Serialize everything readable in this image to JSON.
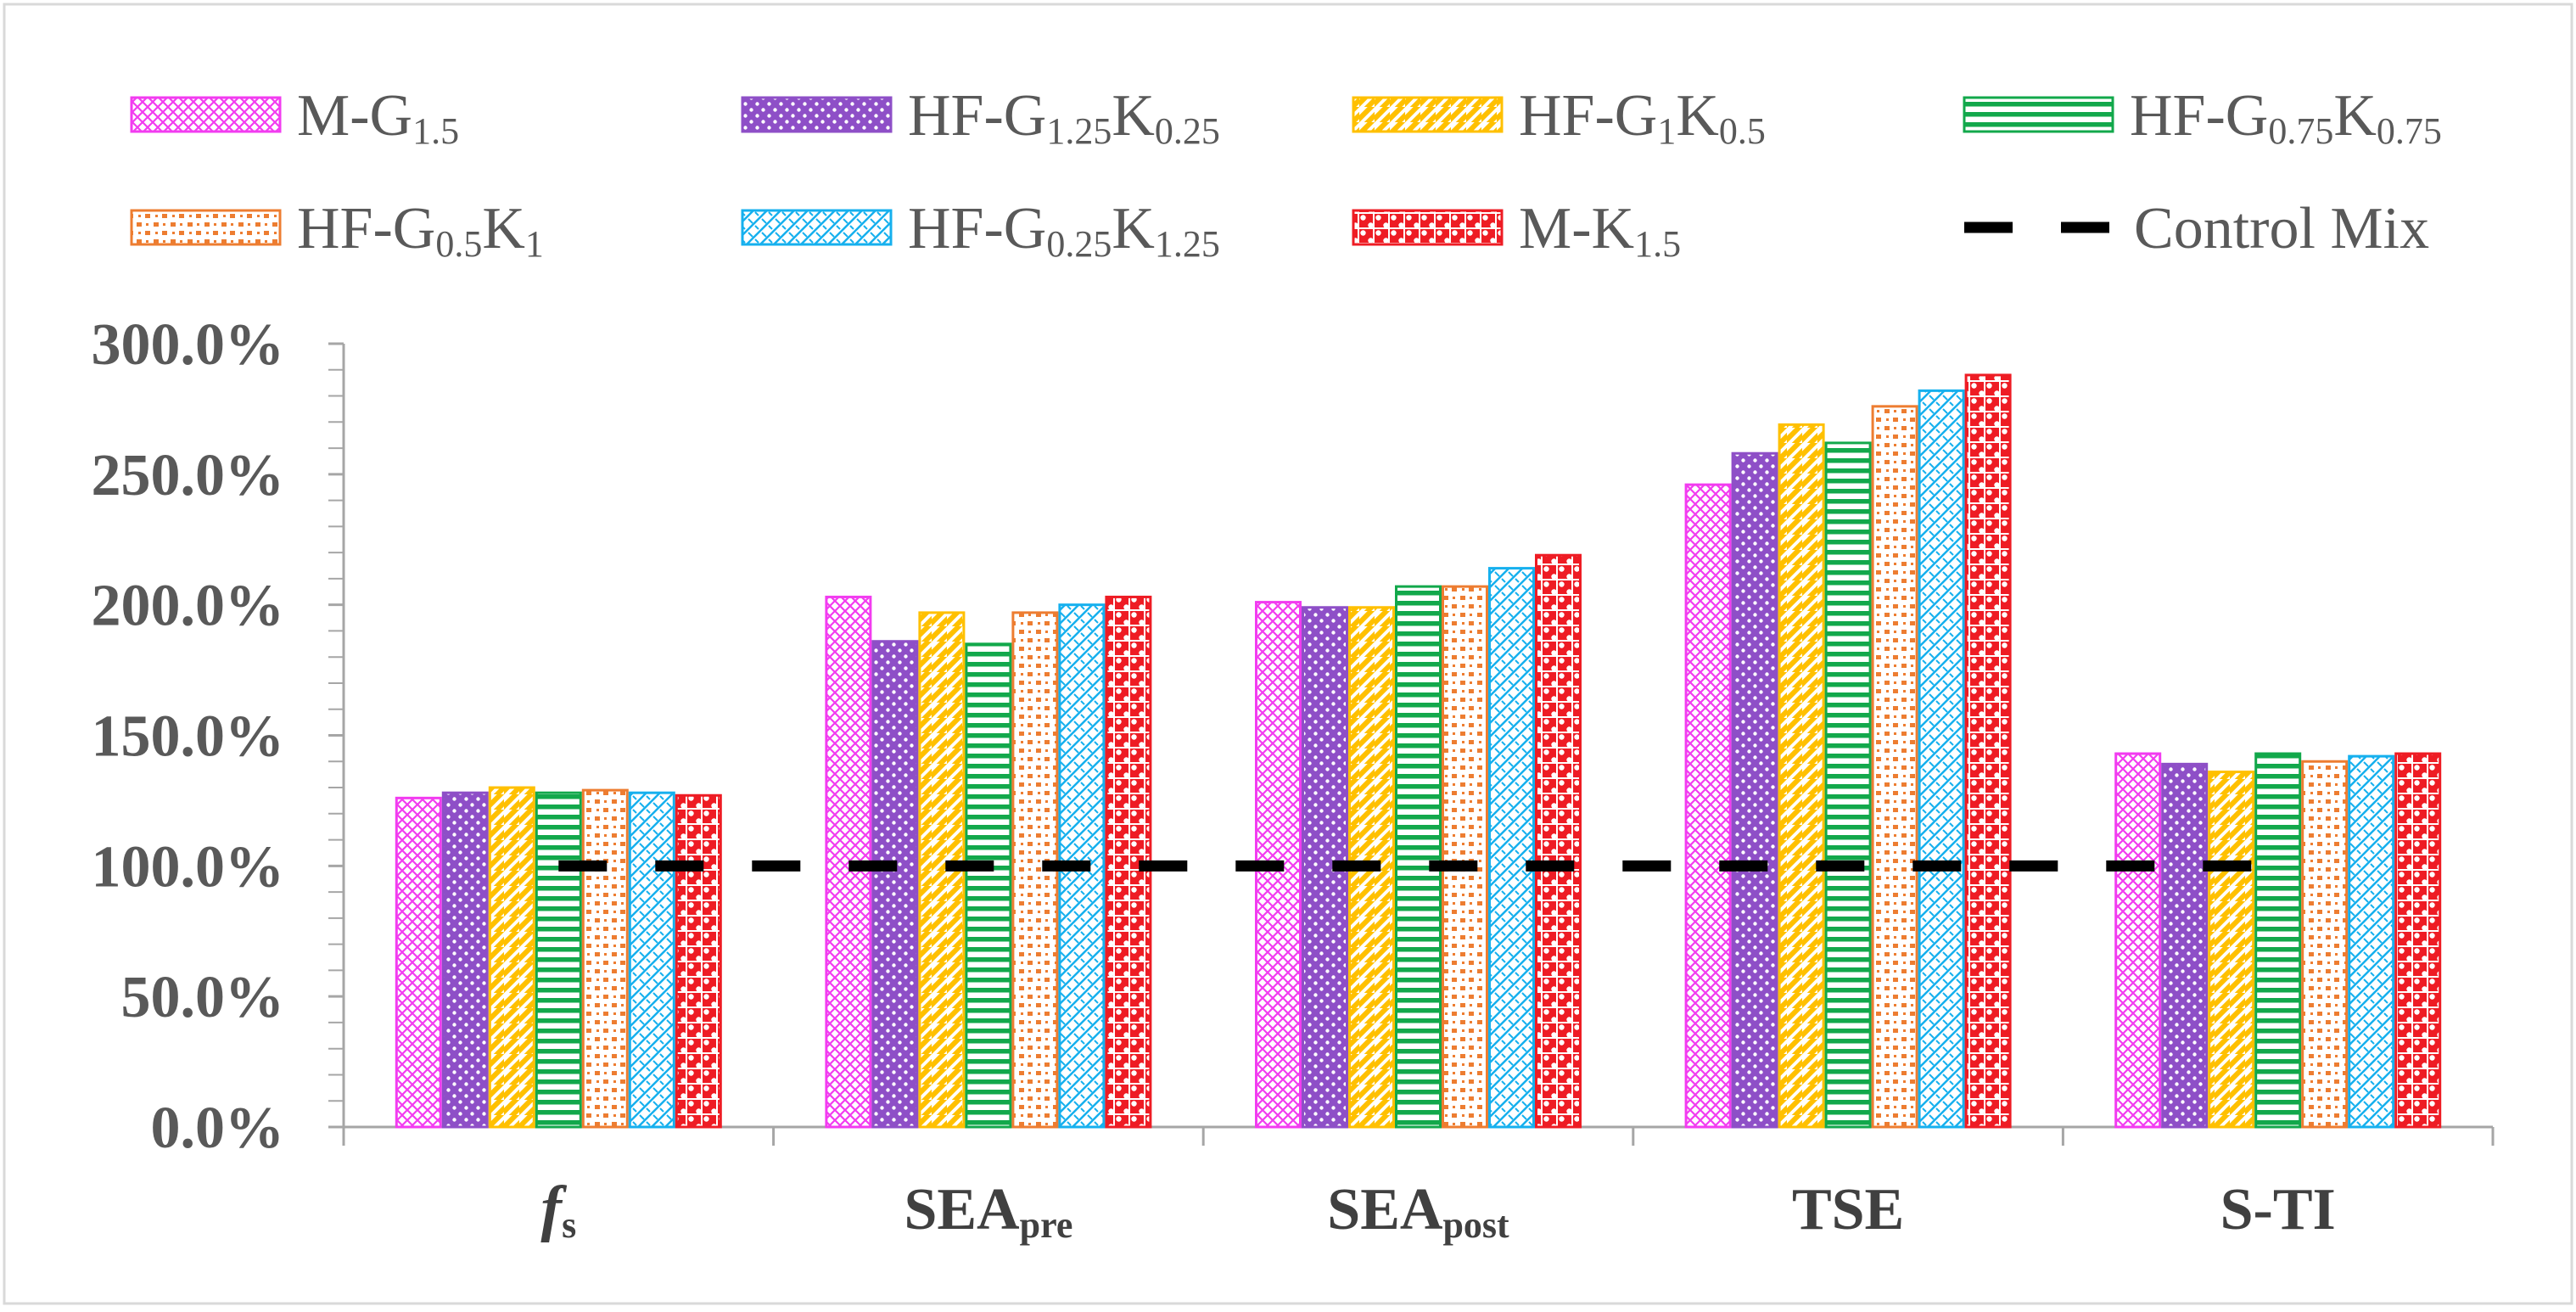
{
  "chart_data": {
    "type": "bar",
    "categories": [
      {
        "main": "f",
        "sub": "s",
        "italic_main": true
      },
      {
        "main": "SEA",
        "sub": "pre",
        "italic_main": false
      },
      {
        "main": "SEA",
        "sub": "post",
        "italic_main": false
      },
      {
        "main": "TSE",
        "sub": "",
        "italic_main": false
      },
      {
        "main": "S-TI",
        "sub": "",
        "italic_main": false
      }
    ],
    "series": [
      {
        "name_parts": [
          [
            "M-G",
            ""
          ],
          [
            "1.5",
            "sub"
          ]
        ],
        "color": "#F23CF0",
        "pattern": "crosshatch",
        "values": [
          126,
          203,
          201,
          246,
          143
        ]
      },
      {
        "name_parts": [
          [
            "HF-G",
            ""
          ],
          [
            "1.25",
            "sub"
          ],
          [
            "K",
            ""
          ],
          [
            "0.25",
            "sub"
          ]
        ],
        "color": "#8E4FC7",
        "pattern": "dots",
        "values": [
          128,
          186,
          199,
          258,
          139
        ]
      },
      {
        "name_parts": [
          [
            "HF-G",
            ""
          ],
          [
            "1",
            "sub"
          ],
          [
            "K",
            ""
          ],
          [
            "0.5",
            "sub"
          ]
        ],
        "color": "#FFC000",
        "pattern": "wide-diagonal",
        "values": [
          130,
          197,
          199,
          269,
          136
        ]
      },
      {
        "name_parts": [
          [
            "HF-G",
            ""
          ],
          [
            "0.75",
            "sub"
          ],
          [
            "K",
            ""
          ],
          [
            "0.75",
            "sub"
          ]
        ],
        "color": "#12A84B",
        "pattern": "horizontal",
        "values": [
          128,
          185,
          207,
          262,
          143
        ]
      },
      {
        "name_parts": [
          [
            "HF-G",
            ""
          ],
          [
            "0.5",
            "sub"
          ],
          [
            "K",
            ""
          ],
          [
            "1",
            "sub"
          ]
        ],
        "color": "#ED7D31",
        "pattern": "confetti",
        "values": [
          129,
          197,
          207,
          276,
          140
        ]
      },
      {
        "name_parts": [
          [
            "HF-G",
            ""
          ],
          [
            "0.25",
            "sub"
          ],
          [
            "K",
            ""
          ],
          [
            "1.25",
            "sub"
          ]
        ],
        "color": "#16B0EE",
        "pattern": "weave",
        "values": [
          128,
          200,
          214,
          282,
          142
        ]
      },
      {
        "name_parts": [
          [
            "M-K",
            ""
          ],
          [
            "1.5",
            "sub"
          ]
        ],
        "color": "#EE1C24",
        "pattern": "circles",
        "values": [
          127,
          203,
          219,
          288,
          143
        ]
      }
    ],
    "control": {
      "name": "Control Mix",
      "value": 100,
      "color": "#000000"
    },
    "y_axis": {
      "min": 0,
      "max": 300,
      "major_step": 50,
      "minor_step": 10,
      "tick_format_suffix": "%",
      "decimals": 1
    },
    "title": "",
    "xlabel": "",
    "ylabel": "",
    "legend_position": "top",
    "ylim": [
      0,
      300
    ]
  }
}
